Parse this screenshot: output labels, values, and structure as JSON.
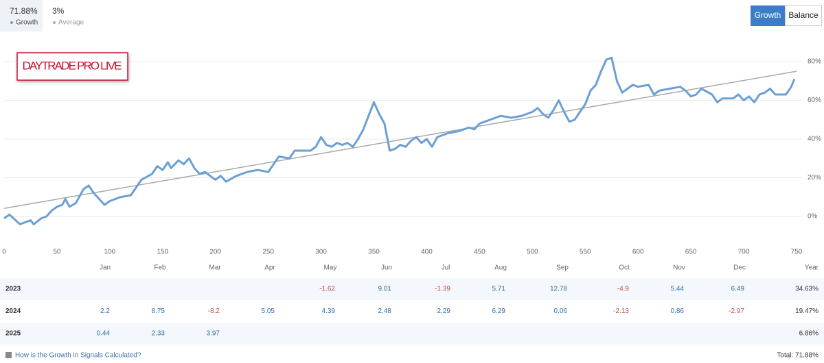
{
  "header": {
    "tabs": [
      {
        "value": "71.88%",
        "label": "Growth"
      },
      {
        "value": "3%",
        "label": "Average"
      }
    ],
    "buttons": [
      "Growth",
      "Balance"
    ]
  },
  "chart_data": {
    "type": "line",
    "annotation": "DAYTRADE PRO LIVE",
    "xlim": [
      0,
      750
    ],
    "xticks": [
      0,
      50,
      100,
      150,
      200,
      250,
      300,
      350,
      400,
      450,
      500,
      550,
      600,
      650,
      700,
      750
    ],
    "ylim": [
      -12,
      86
    ],
    "yticks": [
      {
        "value": 0,
        "label": "0%"
      },
      {
        "value": 20,
        "label": "20%"
      },
      {
        "value": 40,
        "label": "40%"
      },
      {
        "value": 60,
        "label": "60%"
      },
      {
        "value": 80,
        "label": "80%"
      }
    ],
    "grid": true,
    "series": [
      {
        "name": "Growth",
        "color": "#6a9fd6",
        "x": [
          0,
          5,
          15,
          25,
          28,
          35,
          40,
          45,
          50,
          55,
          58,
          62,
          68,
          75,
          80,
          85,
          90,
          95,
          100,
          110,
          120,
          125,
          130,
          140,
          145,
          150,
          155,
          158,
          165,
          170,
          175,
          180,
          185,
          190,
          200,
          205,
          210,
          220,
          230,
          240,
          250,
          255,
          260,
          270,
          275,
          290,
          295,
          300,
          305,
          310,
          315,
          320,
          325,
          330,
          335,
          340,
          345,
          350,
          355,
          360,
          365,
          370,
          375,
          380,
          385,
          390,
          395,
          400,
          405,
          410,
          420,
          430,
          440,
          445,
          450,
          460,
          470,
          480,
          490,
          500,
          505,
          510,
          515,
          520,
          525,
          530,
          535,
          540,
          545,
          550,
          555,
          560,
          565,
          570,
          575,
          580,
          585,
          590,
          595,
          600,
          610,
          615,
          620,
          630,
          640,
          645,
          650,
          655,
          660,
          670,
          675,
          680,
          690,
          695,
          700,
          705,
          710,
          715,
          720,
          725,
          730,
          740,
          745,
          748
        ],
        "values": [
          -1,
          1,
          -4,
          -2,
          -4,
          -1,
          0,
          3,
          5,
          6,
          9,
          5,
          7,
          14,
          16,
          12,
          9,
          6,
          8,
          10,
          11,
          15,
          19,
          22,
          26,
          24,
          28,
          25,
          29,
          27,
          30,
          25,
          22,
          23,
          19,
          21,
          18,
          21,
          23,
          24,
          23,
          27,
          31,
          30,
          34,
          34,
          36,
          41,
          37,
          36,
          38,
          37,
          38,
          36,
          40,
          45,
          52,
          59,
          53,
          48,
          34,
          35,
          37,
          36,
          39,
          41,
          38,
          40,
          36,
          41,
          43,
          44,
          46,
          45,
          48,
          50,
          52,
          51,
          52,
          54,
          56,
          53,
          51,
          55,
          60,
          54,
          49,
          50,
          54,
          58,
          65,
          68,
          75,
          81,
          82,
          70,
          64,
          66,
          68,
          67,
          68,
          63,
          65,
          66,
          67,
          65,
          62,
          63,
          66,
          63,
          59,
          61,
          61,
          63,
          60,
          62,
          59,
          63,
          64,
          66,
          63,
          63,
          67,
          71
        ]
      },
      {
        "name": "Trend",
        "color": "#a8a8a8",
        "x": [
          0,
          750
        ],
        "values": [
          4.2,
          75
        ]
      }
    ]
  },
  "table": {
    "columns": [
      "Jan",
      "Feb",
      "Mar",
      "Apr",
      "May",
      "Jun",
      "Jul",
      "Aug",
      "Sep",
      "Oct",
      "Nov",
      "Dec",
      "Year"
    ],
    "rows": [
      {
        "label": "2023",
        "cells": [
          null,
          null,
          null,
          null,
          -1.62,
          9.01,
          -1.39,
          5.71,
          12.78,
          -4.9,
          5.44,
          6.49,
          "34.63%"
        ]
      },
      {
        "label": "2024",
        "cells": [
          2.2,
          8.75,
          -8.2,
          5.05,
          4.39,
          2.48,
          2.29,
          6.29,
          0.06,
          -2.13,
          0.86,
          -2.97,
          "19.47%"
        ]
      },
      {
        "label": "2025",
        "cells": [
          0.44,
          2.33,
          3.97,
          null,
          null,
          null,
          null,
          null,
          null,
          null,
          null,
          null,
          "6.86%"
        ]
      }
    ]
  },
  "footer": {
    "link": "How is the Growth in Signals Calculated?",
    "total": "Total: 71.88%"
  }
}
